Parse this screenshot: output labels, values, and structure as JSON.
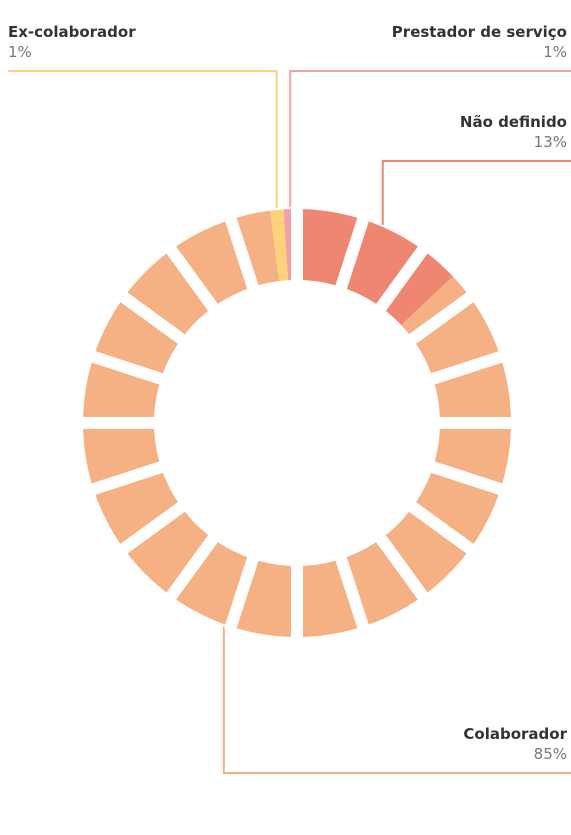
{
  "chart_data": {
    "type": "pie",
    "categories": [
      "Não definido",
      "Colaborador",
      "Ex-colaborador",
      "Prestador de serviço"
    ],
    "values": [
      13,
      85,
      1,
      1
    ],
    "value_labels": [
      "13%",
      "85%",
      "1%",
      "1%"
    ],
    "colors": [
      "#ee8672",
      "#f5b183",
      "#fdd27a",
      "#f2a0a8"
    ]
  }
}
